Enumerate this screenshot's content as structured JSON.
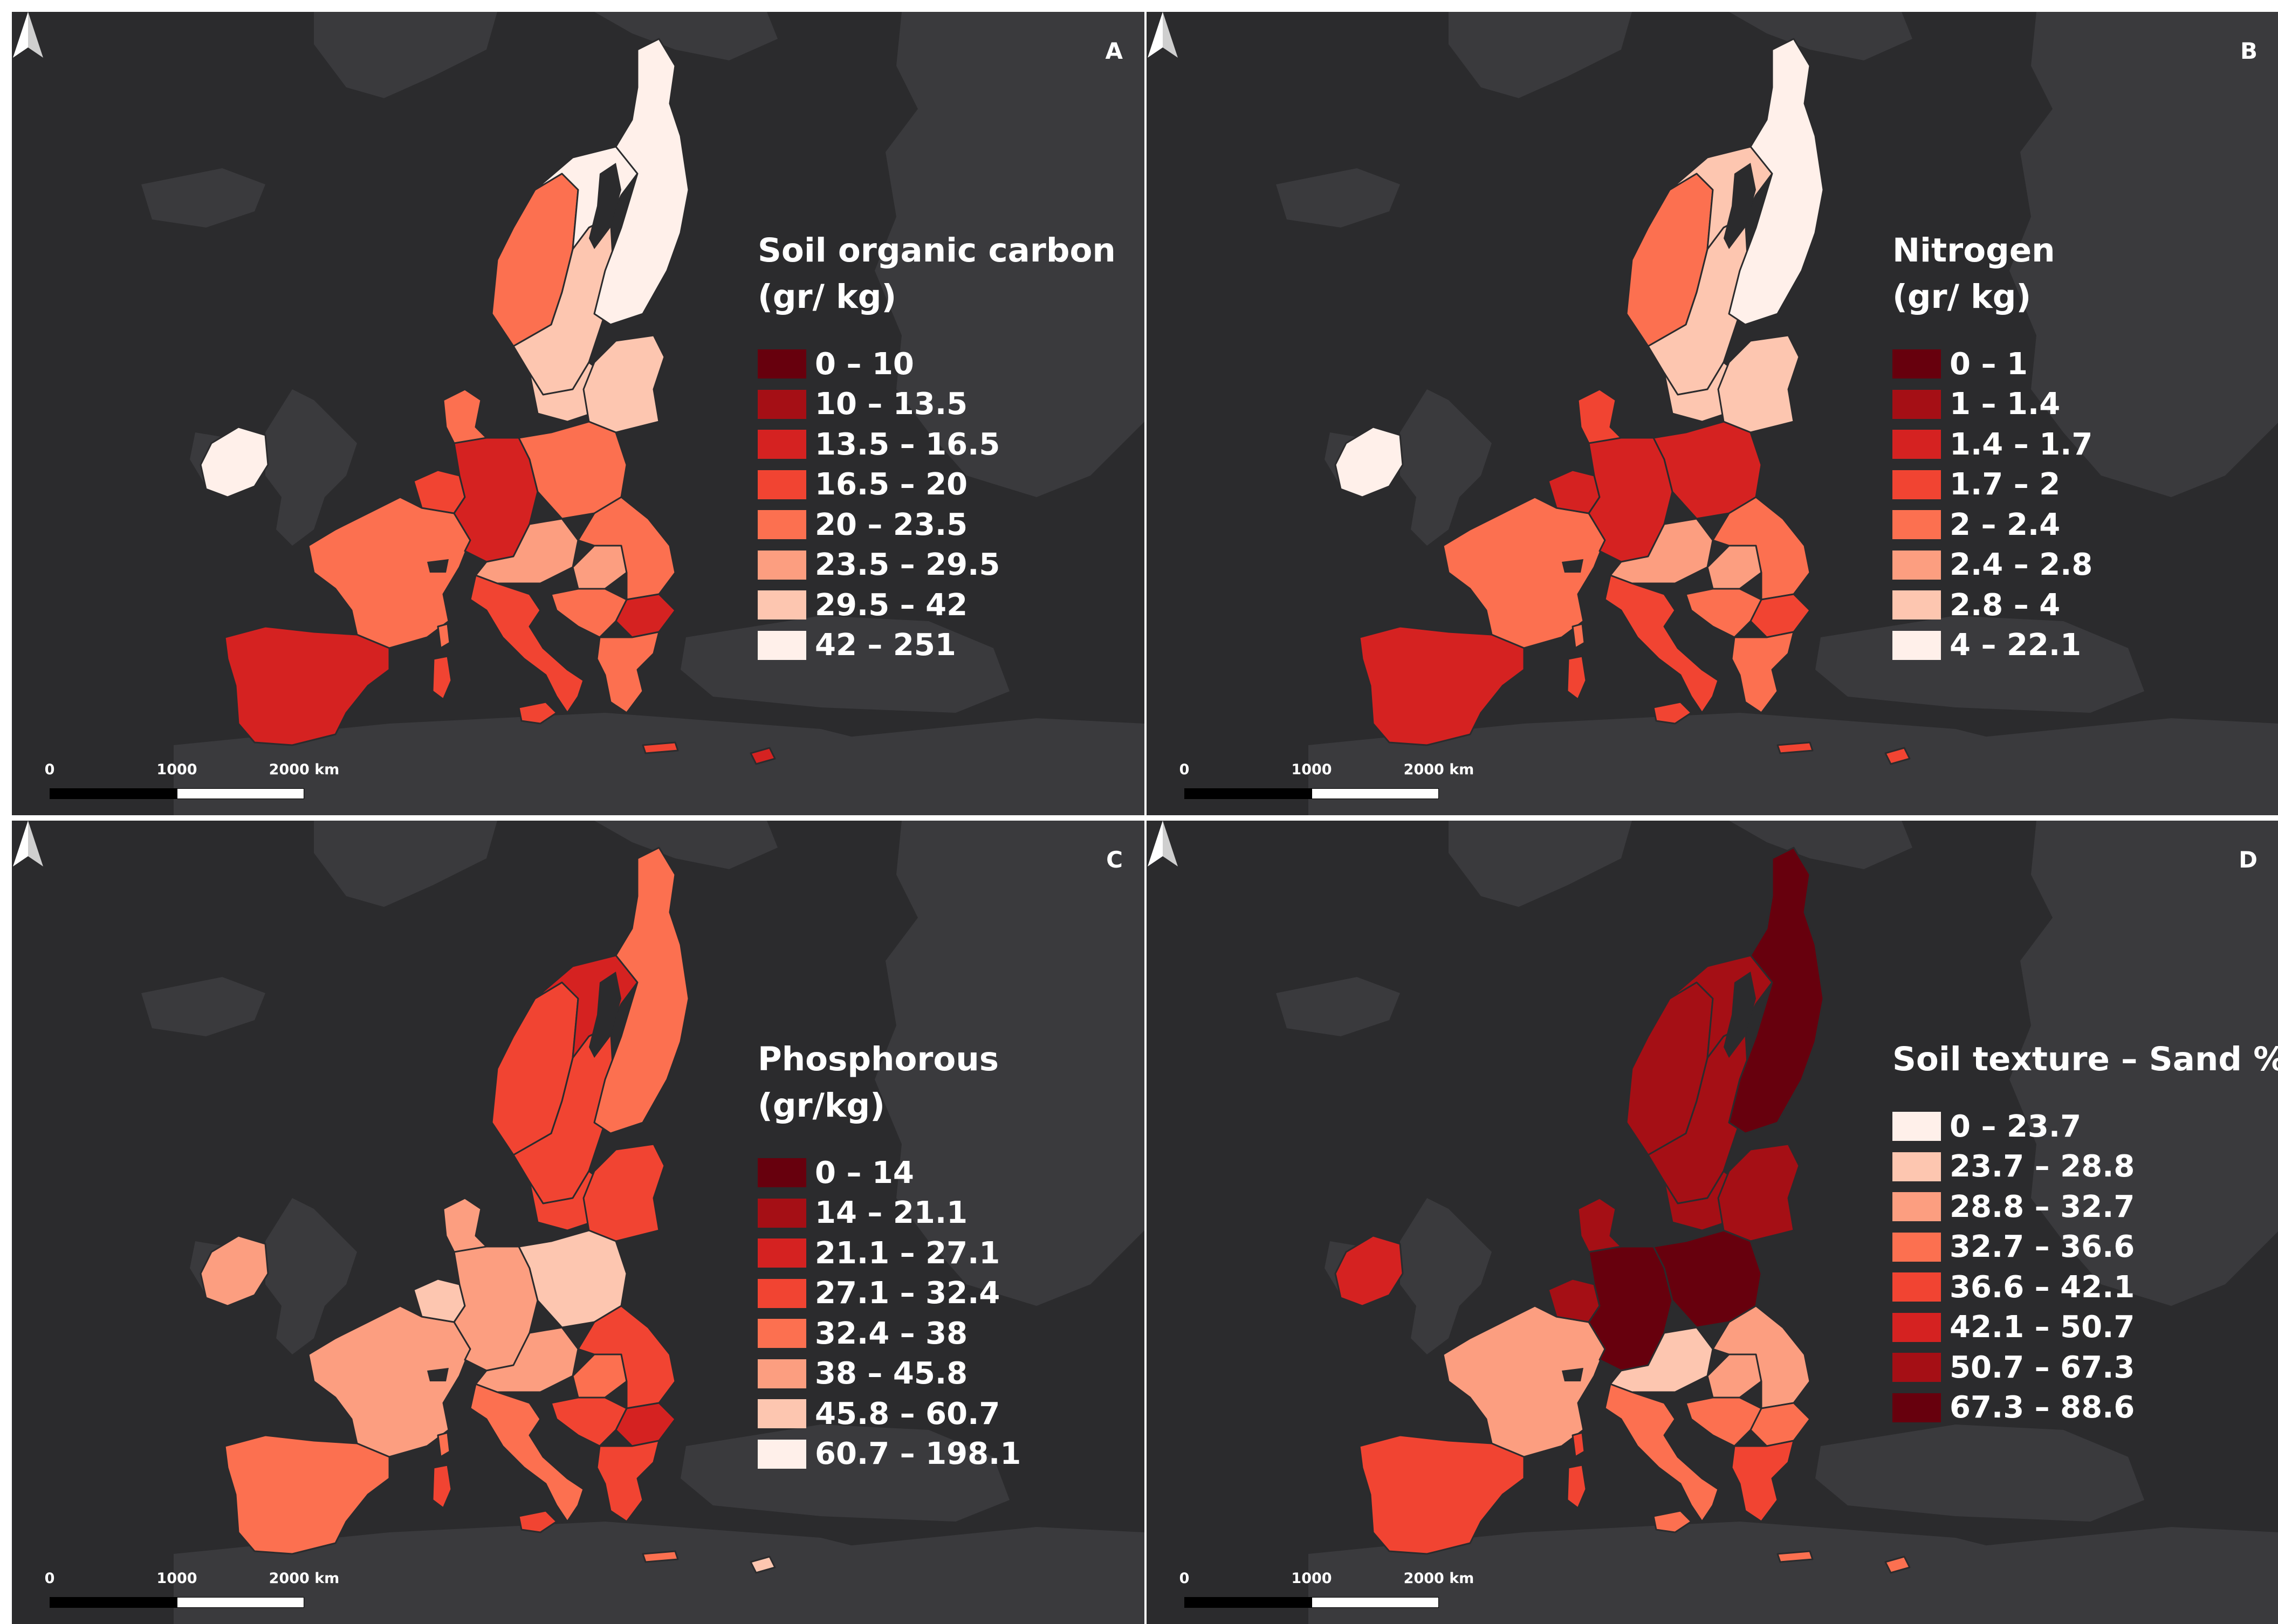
{
  "figure": {
    "panels": [
      {
        "letter": "A",
        "legend_title_lines": [
          "Soil organic carbon",
          "(gr/ kg)"
        ],
        "classes": [
          {
            "label": "0 – 10",
            "color": "#67000d"
          },
          {
            "label": "10 – 13.5",
            "color": "#a50f15"
          },
          {
            "label": "13.5 – 16.5",
            "color": "#d52221"
          },
          {
            "label": "16.5 – 20",
            "color": "#f14432"
          },
          {
            "label": "20 – 23.5",
            "color": "#fc7050"
          },
          {
            "label": "23.5 – 29.5",
            "color": "#fc9e80"
          },
          {
            "label": "29.5 – 42",
            "color": "#fdc6b0"
          },
          {
            "label": "42 – 251",
            "color": "#fff0ea"
          }
        ],
        "region_classes": {
          "finland": 7,
          "sweden_north": 7,
          "sweden_west": 4,
          "sweden_south": 6,
          "norway_strip": 6,
          "denmark": 4,
          "baltics": 6,
          "ireland": 7,
          "iberia": 2,
          "france": 4,
          "benelux": 3,
          "germany": 2,
          "poland": 4,
          "czech_aut": 5,
          "hungary": 5,
          "romania": 4,
          "bulgaria": 2,
          "balkans": 4,
          "italy": 3,
          "sardinia": 3,
          "corsica": 4,
          "sicily": 3,
          "greece": 4,
          "crete": 3,
          "cyprus": 2
        }
      },
      {
        "letter": "B",
        "legend_title_lines": [
          "Nitrogen",
          "(gr/ kg)"
        ],
        "classes": [
          {
            "label": "0 – 1",
            "color": "#67000d"
          },
          {
            "label": "1 – 1.4",
            "color": "#a50f15"
          },
          {
            "label": "1.4 – 1.7",
            "color": "#d52221"
          },
          {
            "label": "1.7 – 2",
            "color": "#f14432"
          },
          {
            "label": "2 – 2.4",
            "color": "#fc7050"
          },
          {
            "label": "2.4 – 2.8",
            "color": "#fc9e80"
          },
          {
            "label": "2.8 – 4",
            "color": "#fdc6b0"
          },
          {
            "label": "4 – 22.1",
            "color": "#fff0ea"
          }
        ],
        "region_classes": {
          "finland": 7,
          "sweden_north": 6,
          "sweden_west": 4,
          "sweden_south": 6,
          "norway_strip": 6,
          "denmark": 3,
          "baltics": 6,
          "ireland": 7,
          "iberia": 2,
          "france": 4,
          "benelux": 2,
          "germany": 2,
          "poland": 2,
          "czech_aut": 5,
          "hungary": 5,
          "romania": 4,
          "bulgaria": 3,
          "balkans": 4,
          "italy": 3,
          "sardinia": 3,
          "corsica": 4,
          "sicily": 3,
          "greece": 4,
          "crete": 3,
          "cyprus": 3
        }
      },
      {
        "letter": "C",
        "legend_title_lines": [
          "Phosphorous",
          "(gr/kg)"
        ],
        "classes": [
          {
            "label": "0 – 14",
            "color": "#67000d"
          },
          {
            "label": "14 – 21.1",
            "color": "#a50f15"
          },
          {
            "label": "21.1 – 27.1",
            "color": "#d52221"
          },
          {
            "label": "27.1 – 32.4",
            "color": "#f14432"
          },
          {
            "label": "32.4 – 38",
            "color": "#fc7050"
          },
          {
            "label": "38 – 45.8",
            "color": "#fc9e80"
          },
          {
            "label": "45.8 – 60.7",
            "color": "#fdc6b0"
          },
          {
            "label": "60.7 – 198.1",
            "color": "#fff0ea"
          }
        ],
        "region_classes": {
          "finland": 4,
          "sweden_north": 2,
          "sweden_west": 3,
          "sweden_south": 3,
          "norway_strip": 3,
          "denmark": 5,
          "baltics": 3,
          "ireland": 5,
          "iberia": 4,
          "france": 5,
          "benelux": 6,
          "germany": 5,
          "poland": 6,
          "czech_aut": 5,
          "hungary": 4,
          "romania": 3,
          "bulgaria": 2,
          "balkans": 3,
          "italy": 4,
          "sardinia": 3,
          "corsica": 4,
          "sicily": 3,
          "greece": 3,
          "crete": 4,
          "cyprus": 6
        }
      },
      {
        "letter": "D",
        "legend_title_lines": [
          "Soil texture – Sand %"
        ],
        "classes": [
          {
            "label": "0 – 23.7",
            "color": "#fff0ea"
          },
          {
            "label": "23.7 – 28.8",
            "color": "#fdc6b0"
          },
          {
            "label": "28.8 – 32.7",
            "color": "#fc9e80"
          },
          {
            "label": "32.7 – 36.6",
            "color": "#fc7050"
          },
          {
            "label": "36.6 – 42.1",
            "color": "#f14432"
          },
          {
            "label": "42.1 – 50.7",
            "color": "#d52221"
          },
          {
            "label": "50.7 – 67.3",
            "color": "#a50f15"
          },
          {
            "label": "67.3 – 88.6",
            "color": "#67000d"
          }
        ],
        "region_classes": {
          "finland": 7,
          "sweden_north": 6,
          "sweden_west": 6,
          "sweden_south": 6,
          "norway_strip": 6,
          "denmark": 6,
          "baltics": 6,
          "ireland": 5,
          "iberia": 4,
          "france": 2,
          "benelux": 6,
          "germany": 7,
          "poland": 7,
          "czech_aut": 1,
          "hungary": 2,
          "romania": 2,
          "bulgaria": 3,
          "balkans": 3,
          "italy": 3,
          "sardinia": 4,
          "corsica": 4,
          "sicily": 3,
          "greece": 4,
          "crete": 3,
          "cyprus": 3
        }
      }
    ],
    "scalebar": {
      "ticks": [
        "0",
        "1000",
        "2000 km"
      ]
    }
  }
}
